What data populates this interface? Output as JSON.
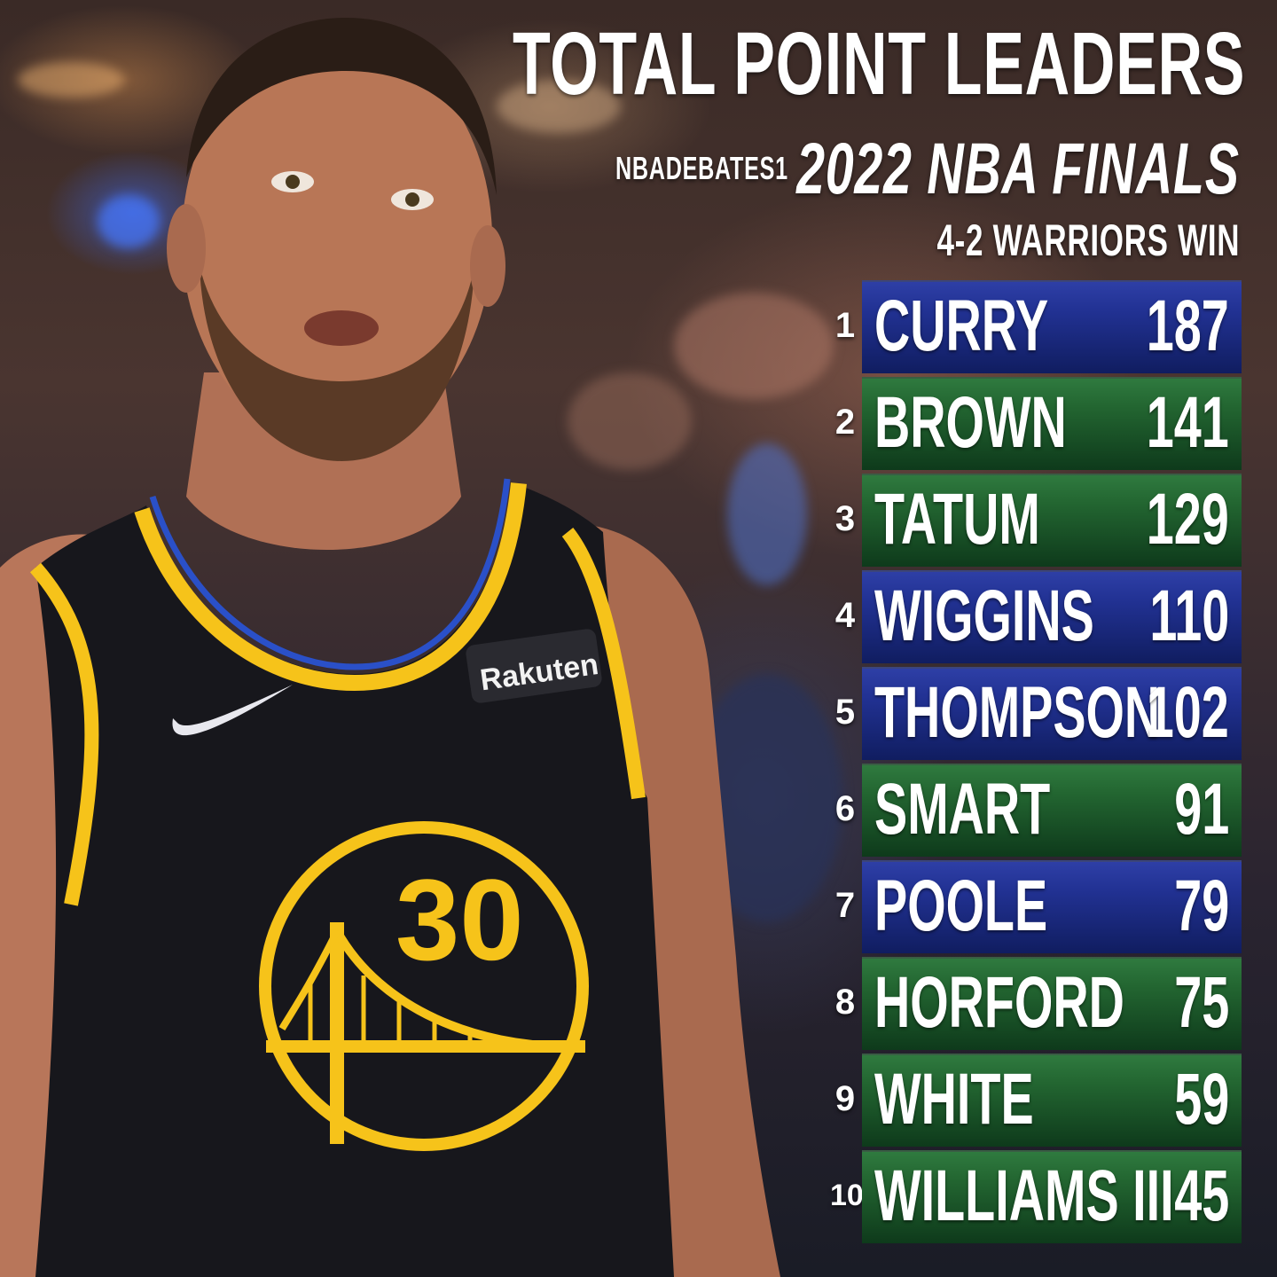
{
  "title": "TOTAL POINT LEADERS",
  "subtitle": "2022 NBA FINALS",
  "series_result": "4-2 WARRIORS WIN",
  "handle": "NBADEBATES1",
  "jersey": {
    "brand": "Rakuten",
    "number": "30"
  },
  "colors": {
    "warriors_bar": "#223294",
    "celtics_bar": "#236631",
    "jersey_gold": "#f6c31a",
    "jersey_blue": "#2a50c8"
  },
  "leaders": [
    {
      "rank": "1",
      "name": "CURRY",
      "points": "187",
      "team": "gsw"
    },
    {
      "rank": "2",
      "name": "BROWN",
      "points": "141",
      "team": "bos"
    },
    {
      "rank": "3",
      "name": "TATUM",
      "points": "129",
      "team": "bos"
    },
    {
      "rank": "4",
      "name": "WIGGINS",
      "points": "110",
      "team": "gsw"
    },
    {
      "rank": "5",
      "name": "THOMPSON",
      "points": "102",
      "team": "gsw"
    },
    {
      "rank": "6",
      "name": "SMART",
      "points": "91",
      "team": "bos"
    },
    {
      "rank": "7",
      "name": "POOLE",
      "points": "79",
      "team": "gsw"
    },
    {
      "rank": "8",
      "name": "HORFORD",
      "points": "75",
      "team": "bos"
    },
    {
      "rank": "9",
      "name": "WHITE",
      "points": "59",
      "team": "bos"
    },
    {
      "rank": "10",
      "name": "WILLIAMS III",
      "points": "45",
      "team": "bos"
    }
  ]
}
